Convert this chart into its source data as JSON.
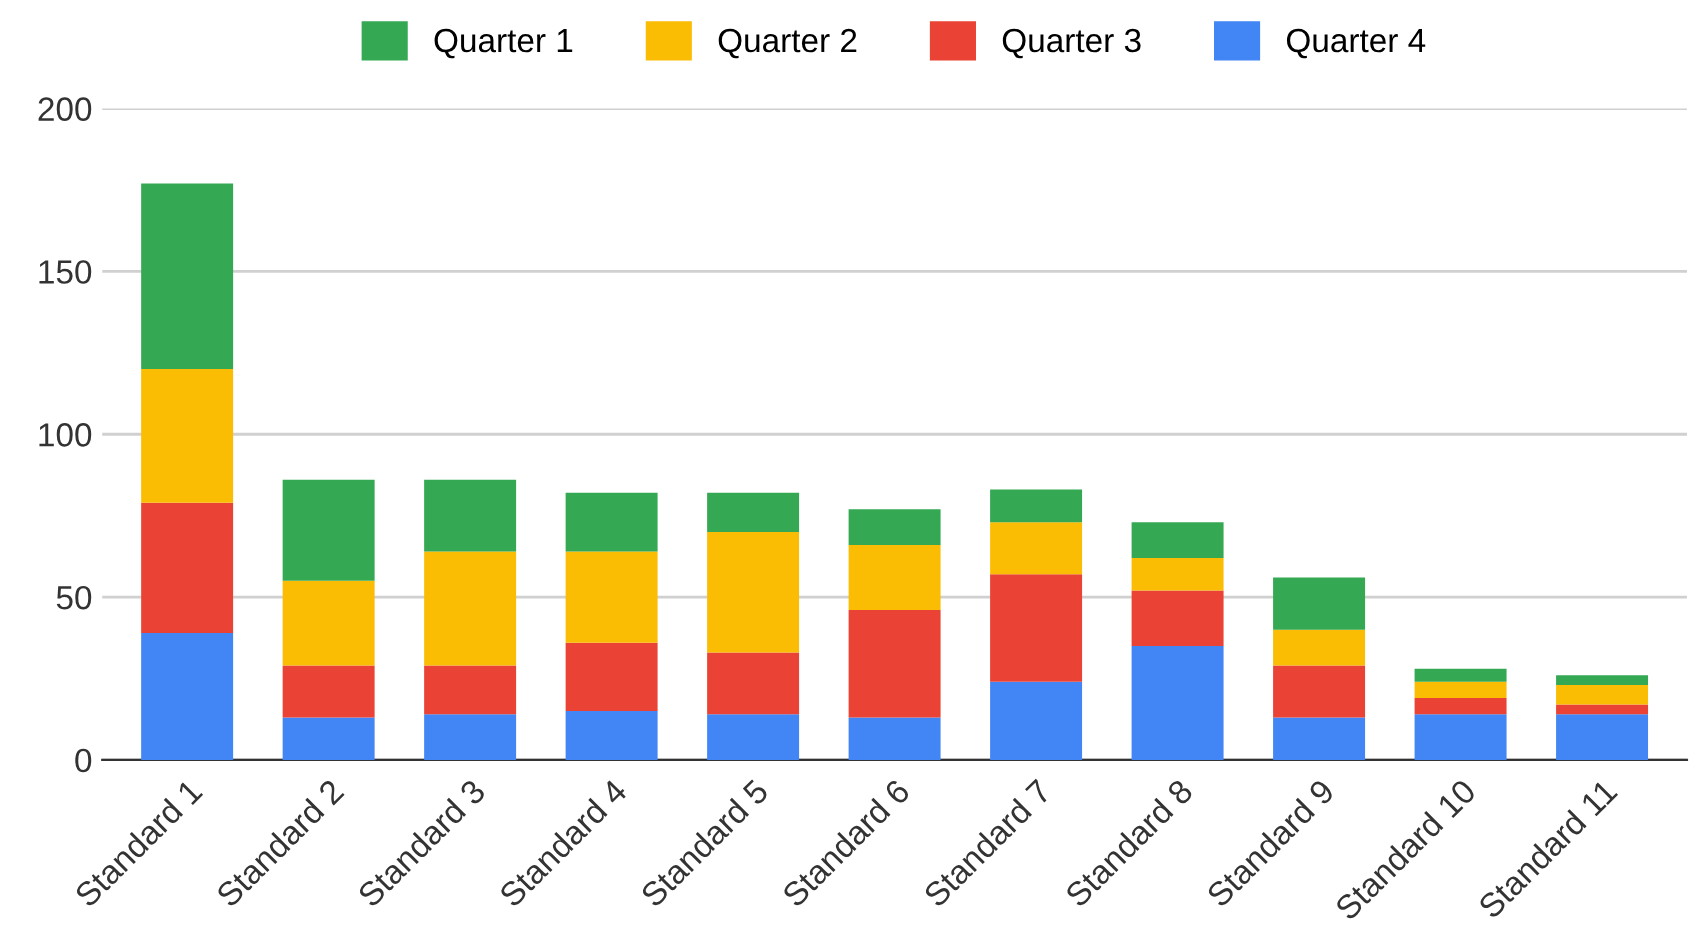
{
  "chart_data": {
    "type": "bar",
    "stacked": true,
    "categories": [
      "Standard 1",
      "Standard 2",
      "Standard 3",
      "Standard 4",
      "Standard 5",
      "Standard 6",
      "Standard 7",
      "Standard 8",
      "Standard 9",
      "Standard 10",
      "Standard 11"
    ],
    "series": [
      {
        "name": "Quarter 4",
        "color": "#4285f4",
        "values": [
          39,
          13,
          14,
          15,
          14,
          13,
          24,
          35,
          13,
          14,
          14
        ]
      },
      {
        "name": "Quarter 3",
        "color": "#ea4335",
        "values": [
          40,
          16,
          15,
          21,
          19,
          33,
          33,
          17,
          16,
          5,
          3
        ]
      },
      {
        "name": "Quarter 2",
        "color": "#fbbc04",
        "values": [
          41,
          26,
          35,
          28,
          37,
          20,
          16,
          10,
          11,
          5,
          6
        ]
      },
      {
        "name": "Quarter 1",
        "color": "#34a853",
        "values": [
          57,
          31,
          22,
          18,
          12,
          11,
          10,
          11,
          16,
          4,
          3
        ]
      }
    ],
    "ylim": [
      0,
      200
    ],
    "yticks": [
      0,
      50,
      100,
      150,
      200
    ],
    "grid": "y",
    "legend": "top"
  }
}
